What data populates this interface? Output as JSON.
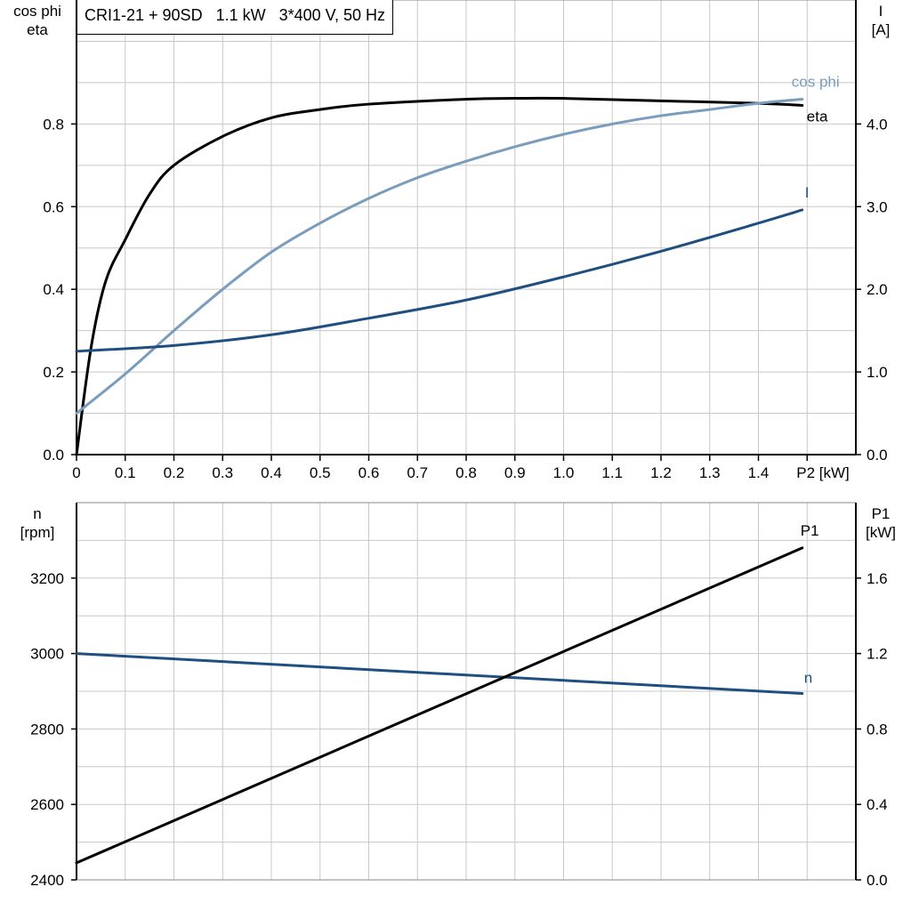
{
  "title": "CRI1-21 + 90SD   1.1 kW   3*400 V, 50 Hz",
  "chart_data": [
    {
      "type": "line",
      "xlabel": "P2 [kW]",
      "ylabel_left": [
        "cos phi",
        "eta"
      ],
      "ylabel_right": [
        "I",
        "[A]"
      ],
      "xlim": [
        0,
        1.6
      ],
      "ylim_left": [
        0,
        1.1
      ],
      "ylim_right": [
        0,
        5.5
      ],
      "grid": true,
      "x_ticks": [
        "0",
        "0.1",
        "0.2",
        "0.3",
        "0.4",
        "0.5",
        "0.6",
        "0.7",
        "0.8",
        "0.9",
        "1.0",
        "1.1",
        "1.2",
        "1.3",
        "1.4"
      ],
      "y_ticks_left": [
        "0.0",
        "0.2",
        "0.4",
        "0.6",
        "0.8"
      ],
      "y_ticks_right": [
        "0.0",
        "1.0",
        "2.0",
        "3.0",
        "4.0"
      ],
      "series": [
        {
          "name": "eta",
          "axis": "left",
          "color": "#000000",
          "x": [
            0,
            0.03,
            0.06,
            0.1,
            0.15,
            0.2,
            0.3,
            0.4,
            0.5,
            0.6,
            0.8,
            0.9,
            1.0,
            1.2,
            1.4,
            1.49
          ],
          "y": [
            0,
            0.26,
            0.42,
            0.52,
            0.63,
            0.7,
            0.77,
            0.815,
            0.835,
            0.848,
            0.86,
            0.862,
            0.862,
            0.856,
            0.85,
            0.845
          ]
        },
        {
          "name": "cos phi",
          "axis": "left",
          "color": "#7a9cbd",
          "x": [
            0,
            0.1,
            0.2,
            0.3,
            0.4,
            0.5,
            0.6,
            0.7,
            0.8,
            0.9,
            1.0,
            1.1,
            1.2,
            1.3,
            1.4,
            1.49
          ],
          "y": [
            0.1,
            0.195,
            0.3,
            0.4,
            0.49,
            0.56,
            0.62,
            0.67,
            0.71,
            0.745,
            0.775,
            0.8,
            0.82,
            0.835,
            0.85,
            0.86
          ]
        },
        {
          "name": "I",
          "axis": "right",
          "color": "#1f4f80",
          "x": [
            0,
            0.2,
            0.4,
            0.6,
            0.8,
            1.0,
            1.2,
            1.4,
            1.49
          ],
          "y": [
            1.25,
            1.32,
            1.45,
            1.65,
            1.87,
            2.15,
            2.46,
            2.8,
            2.96
          ]
        }
      ]
    },
    {
      "type": "line",
      "xlabel": "",
      "ylabel_left": [
        "n",
        "[rpm]"
      ],
      "ylabel_right": [
        "P1",
        "[kW]"
      ],
      "xlim": [
        0,
        1.6
      ],
      "ylim_left": [
        2400,
        3400
      ],
      "ylim_right": [
        0,
        2.0
      ],
      "grid": true,
      "y_ticks_left": [
        "2400",
        "2600",
        "2800",
        "3000",
        "3200"
      ],
      "y_ticks_right": [
        "0.0",
        "0.4",
        "0.8",
        "1.2",
        "1.6"
      ],
      "series": [
        {
          "name": "n",
          "axis": "left",
          "color": "#1f4f80",
          "x": [
            0,
            1.49
          ],
          "y": [
            3000,
            2894
          ]
        },
        {
          "name": "P1",
          "axis": "right",
          "color": "#000000",
          "x": [
            0,
            1.49
          ],
          "y": [
            0.09,
            1.76
          ]
        }
      ]
    }
  ]
}
